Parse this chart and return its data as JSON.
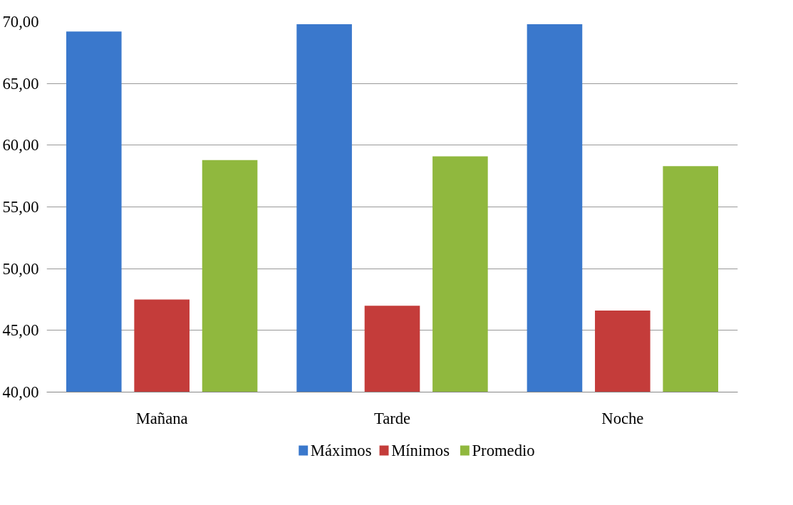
{
  "chart_data": {
    "type": "bar",
    "categories": [
      "Mañana",
      "Tarde",
      "Noche"
    ],
    "series": [
      {
        "name": "Máximos",
        "color": "#3a78cc",
        "values": [
          69.2,
          69.8,
          69.8
        ]
      },
      {
        "name": "Mínimos",
        "color": "#c43c3a",
        "values": [
          47.5,
          47.0,
          46.6
        ]
      },
      {
        "name": "Promedio",
        "color": "#90b83e",
        "values": [
          58.8,
          59.1,
          58.3
        ]
      }
    ],
    "ylim": [
      40,
      70
    ],
    "yticks": [
      {
        "value": 40,
        "label": "40,00"
      },
      {
        "value": 45,
        "label": "45,00"
      },
      {
        "value": 50,
        "label": "50,00"
      },
      {
        "value": 55,
        "label": "55,00"
      },
      {
        "value": 60,
        "label": "60,00"
      },
      {
        "value": 65,
        "label": "65,00"
      },
      {
        "value": 70,
        "label": "70,00"
      }
    ],
    "grid": "y",
    "legend": "bottom"
  }
}
